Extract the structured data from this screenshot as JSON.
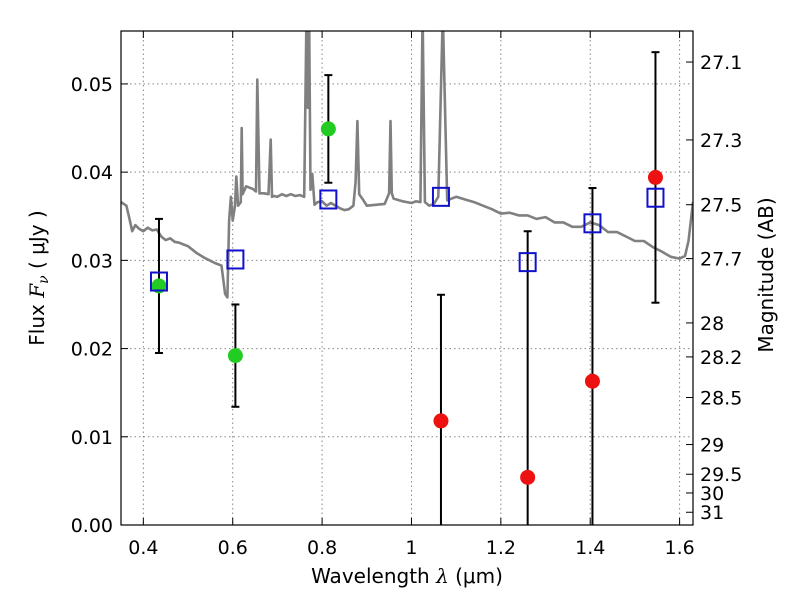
{
  "chart_data": {
    "type": "scatter",
    "xlabel_text": "Wavelength",
    "xlabel_symbol": "λ",
    "xlabel_unit": "(μm)",
    "ylabel_text": "Flux",
    "ylabel_symbol": "F",
    "ylabel_subscript": "ν",
    "ylabel_unit": "( μJy )",
    "y2label": "Magnitude (AB)",
    "xlim": [
      0.35,
      1.63
    ],
    "ylim": [
      0.0,
      0.056
    ],
    "grid": true,
    "x_ticks": [
      0.4,
      0.6,
      0.8,
      1.0,
      1.2,
      1.4,
      1.6
    ],
    "x_tick_labels": [
      "0.4",
      "0.6",
      "0.8",
      "1",
      "1.2",
      "1.4",
      "1.6"
    ],
    "y_ticks": [
      0.0,
      0.01,
      0.02,
      0.03,
      0.04,
      0.05
    ],
    "y_tick_labels": [
      "0.00",
      "0.01",
      "0.02",
      "0.03",
      "0.04",
      "0.05"
    ],
    "y2_ticks": [
      {
        "label": "27.1",
        "mag": 27.1
      },
      {
        "label": "27.3",
        "mag": 27.3
      },
      {
        "label": "27.5",
        "mag": 27.5
      },
      {
        "label": "27.7",
        "mag": 27.7
      },
      {
        "label": "28",
        "mag": 28.0
      },
      {
        "label": "28.2",
        "mag": 28.2
      },
      {
        "label": "28.5",
        "mag": 28.5
      },
      {
        "label": "29",
        "mag": 29.0
      },
      {
        "label": "29.5",
        "mag": 29.5
      },
      {
        "label": "30",
        "mag": 30.0
      },
      {
        "label": "31",
        "mag": 31.0
      }
    ],
    "series": [
      {
        "marker": "circle",
        "color": "#22cc22",
        "points": [
          {
            "x": 0.435,
            "y": 0.0271,
            "err_low": 0.0076,
            "err_high": 0.0076
          },
          {
            "x": 0.606,
            "y": 0.0192,
            "err_low": 0.0058,
            "err_high": 0.0058
          },
          {
            "x": 0.814,
            "y": 0.0449,
            "err_low": 0.0061,
            "err_high": 0.0061
          }
        ]
      },
      {
        "marker": "circle",
        "color": "#ee1111",
        "points": [
          {
            "x": 1.066,
            "y": 0.0118,
            "err_low": 0.0118,
            "err_high": 0.0143
          },
          {
            "x": 1.26,
            "y": 0.0054,
            "err_low": 0.0054,
            "err_high": 0.0279
          },
          {
            "x": 1.405,
            "y": 0.0163,
            "err_low": 0.0163,
            "err_high": 0.0219
          },
          {
            "x": 1.546,
            "y": 0.0394,
            "err_low": 0.0142,
            "err_high": 0.0142
          }
        ]
      },
      {
        "marker": "open-square",
        "color": "#1111cc",
        "points": [
          {
            "x": 0.435,
            "y": 0.0276
          },
          {
            "x": 0.606,
            "y": 0.0301
          },
          {
            "x": 0.814,
            "y": 0.0369
          },
          {
            "x": 1.066,
            "y": 0.0372
          },
          {
            "x": 1.26,
            "y": 0.0298
          },
          {
            "x": 1.405,
            "y": 0.0342
          },
          {
            "x": 1.546,
            "y": 0.0371
          }
        ]
      },
      {
        "type": "line",
        "color": "#808080",
        "x": [
          0.35,
          0.362,
          0.37,
          0.375,
          0.382,
          0.39,
          0.4,
          0.41,
          0.42,
          0.43,
          0.44,
          0.45,
          0.46,
          0.47,
          0.48,
          0.49,
          0.5,
          0.52,
          0.54,
          0.56,
          0.575,
          0.583,
          0.588,
          0.592,
          0.596,
          0.6,
          0.605,
          0.608,
          0.612,
          0.618,
          0.62,
          0.622,
          0.63,
          0.645,
          0.652,
          0.655,
          0.66,
          0.67,
          0.68,
          0.685,
          0.688,
          0.692,
          0.7,
          0.71,
          0.72,
          0.73,
          0.74,
          0.75,
          0.76,
          0.765,
          0.768,
          0.771,
          0.774,
          0.778,
          0.783,
          0.79,
          0.8,
          0.81,
          0.82,
          0.83,
          0.84,
          0.85,
          0.86,
          0.87,
          0.875,
          0.879,
          0.883,
          0.89,
          0.9,
          0.92,
          0.94,
          0.95,
          0.953,
          0.956,
          0.96,
          0.98,
          1.0,
          1.01,
          1.02,
          1.025,
          1.03,
          1.04,
          1.05,
          1.06,
          1.07,
          1.08,
          1.09,
          1.1,
          1.12,
          1.14,
          1.16,
          1.18,
          1.2,
          1.22,
          1.24,
          1.26,
          1.28,
          1.3,
          1.32,
          1.34,
          1.36,
          1.38,
          1.4,
          1.42,
          1.44,
          1.46,
          1.48,
          1.5,
          1.52,
          1.54,
          1.56,
          1.58,
          1.6,
          1.612,
          1.62,
          1.63
        ],
        "y": [
          0.0366,
          0.0362,
          0.0345,
          0.0333,
          0.034,
          0.0336,
          0.0333,
          0.0337,
          0.0334,
          0.0335,
          0.0327,
          0.0323,
          0.0325,
          0.0321,
          0.032,
          0.0318,
          0.0316,
          0.0308,
          0.0302,
          0.0297,
          0.0294,
          0.0262,
          0.0258,
          0.0345,
          0.0372,
          0.0345,
          0.0362,
          0.0395,
          0.0362,
          0.0366,
          0.045,
          0.0375,
          0.0384,
          0.0381,
          0.0378,
          0.0505,
          0.0376,
          0.0376,
          0.0375,
          0.0437,
          0.0372,
          0.0373,
          0.0372,
          0.0375,
          0.0373,
          0.0375,
          0.0373,
          0.0374,
          0.0372,
          0.058,
          0.0473,
          0.058,
          0.038,
          0.0398,
          0.0363,
          0.0366,
          0.0367,
          0.0362,
          0.0365,
          0.0362,
          0.0359,
          0.0357,
          0.0358,
          0.0362,
          0.0389,
          0.0458,
          0.0375,
          0.037,
          0.0362,
          0.0363,
          0.0364,
          0.0376,
          0.0458,
          0.0376,
          0.037,
          0.0367,
          0.0365,
          0.0367,
          0.0366,
          0.058,
          0.0366,
          0.0362,
          0.0364,
          0.0372,
          0.058,
          0.0368,
          0.037,
          0.0372,
          0.0369,
          0.0366,
          0.0362,
          0.0358,
          0.0353,
          0.0354,
          0.0351,
          0.0351,
          0.0347,
          0.0349,
          0.0343,
          0.0343,
          0.0338,
          0.0338,
          0.0343,
          0.034,
          0.0332,
          0.0332,
          0.0327,
          0.0322,
          0.0322,
          0.0315,
          0.031,
          0.0304,
          0.0302,
          0.0305,
          0.0322,
          0.0366
        ]
      }
    ],
    "colors": {
      "line": "#808080",
      "grid": "#888888",
      "errorbar": "#000000"
    }
  }
}
